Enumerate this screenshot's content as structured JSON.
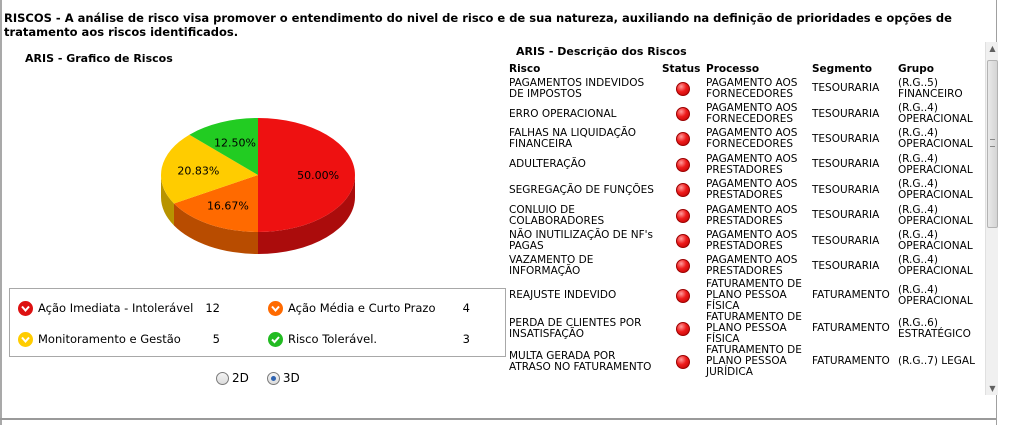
{
  "intro_text": "RISCOS - A análise de risco visa promover o entendimento do nivel de risco e de sua natureza, auxiliando na definição de prioridades e opções de tratamento aos riscos identificados.",
  "chart_title": "ARIS - Grafico de Riscos",
  "table_title": "ARIS - Descrição dos Riscos",
  "chart_data": {
    "type": "pie",
    "title": "ARIS - Grafico de Riscos",
    "slices": [
      {
        "label": "Ação Imediata - Intolerável",
        "value": 50.0,
        "display": "50.00%",
        "color": "#ee1111"
      },
      {
        "label": "Ação Média e Curto Prazo",
        "value": 16.67,
        "display": "16.67%",
        "color": "#ff6a00"
      },
      {
        "label": "Monitoramento e Gestão",
        "value": 20.83,
        "display": "20.83%",
        "color": "#ffcc00"
      },
      {
        "label": "Risco Tolerável.",
        "value": 12.5,
        "display": "12.50%",
        "color": "#22cc22"
      }
    ],
    "legend_placement": "bottom",
    "style_3d": true
  },
  "legend": [
    {
      "label": "Ação Imediata - Intolerável",
      "count": "12",
      "color": "#dd1111",
      "icon": "chevron-down-icon"
    },
    {
      "label": "Ação Média e Curto Prazo",
      "count": "4",
      "color": "#ff6a00",
      "icon": "chevron-down-icon"
    },
    {
      "label": "Monitoramento e Gestão",
      "count": "5",
      "color": "#ffcc00",
      "icon": "chevron-down-icon"
    },
    {
      "label": "Risco Tolerável.",
      "count": "3",
      "color": "#22bb22",
      "icon": "checkmark-icon"
    }
  ],
  "view_mode": {
    "options": [
      "2D",
      "3D"
    ],
    "selected": "3D"
  },
  "table": {
    "headers": [
      "Risco",
      "Status",
      "Processo",
      "Segmento",
      "Grupo"
    ],
    "rows": [
      {
        "risco": "PAGAMENTOS INDEVIDOS DE IMPOSTOS",
        "processo": "PAGAMENTO AOS FORNECEDORES",
        "segmento": "TESOURARIA",
        "grupo": "(R.G..5) FINANCEIRO"
      },
      {
        "risco": "ERRO OPERACIONAL",
        "processo": "PAGAMENTO AOS FORNECEDORES",
        "segmento": "TESOURARIA",
        "grupo": "(R.G..4) OPERACIONAL"
      },
      {
        "risco": "FALHAS NA LIQUIDAÇÃO FINANCEIRA",
        "processo": "PAGAMENTO AOS FORNECEDORES",
        "segmento": "TESOURARIA",
        "grupo": "(R.G..4) OPERACIONAL"
      },
      {
        "risco": "ADULTERAÇÃO",
        "processo": "PAGAMENTO AOS PRESTADORES",
        "segmento": "TESOURARIA",
        "grupo": "(R.G..4) OPERACIONAL"
      },
      {
        "risco": "SEGREGAÇÃO DE FUNÇÕES",
        "processo": "PAGAMENTO AOS PRESTADORES",
        "segmento": "TESOURARIA",
        "grupo": "(R.G..4) OPERACIONAL"
      },
      {
        "risco": "CONLUIO DE COLABORADORES",
        "processo": "PAGAMENTO AOS PRESTADORES",
        "segmento": "TESOURARIA",
        "grupo": "(R.G..4) OPERACIONAL"
      },
      {
        "risco": "NÃO INUTILIZAÇÃO DE NF's PAGAS",
        "processo": "PAGAMENTO AOS PRESTADORES",
        "segmento": "TESOURARIA",
        "grupo": "(R.G..4) OPERACIONAL"
      },
      {
        "risco": "VAZAMENTO DE INFORMAÇÃO",
        "processo": "PAGAMENTO AOS PRESTADORES",
        "segmento": "TESOURARIA",
        "grupo": "(R.G..4) OPERACIONAL"
      },
      {
        "risco": "REAJUSTE INDEVIDO",
        "processo": "FATURAMENTO DE PLANO PESSOA FÍSICA",
        "segmento": "FATURAMENTO",
        "grupo": "(R.G..4) OPERACIONAL"
      },
      {
        "risco": "PERDA DE CLIENTES POR INSATISFAÇÃO",
        "processo": "FATURAMENTO DE PLANO PESSOA FÍSICA",
        "segmento": "FATURAMENTO",
        "grupo": "(R.G..6) ESTRATÉGICO"
      },
      {
        "risco": "MULTA GERADA POR ATRASO NO FATURAMENTO",
        "processo": "FATURAMENTO DE PLANO PESSOA JURÍDICA",
        "segmento": "FATURAMENTO",
        "grupo": "(R.G..7) LEGAL"
      }
    ],
    "status_color": "#ee1b1b"
  }
}
